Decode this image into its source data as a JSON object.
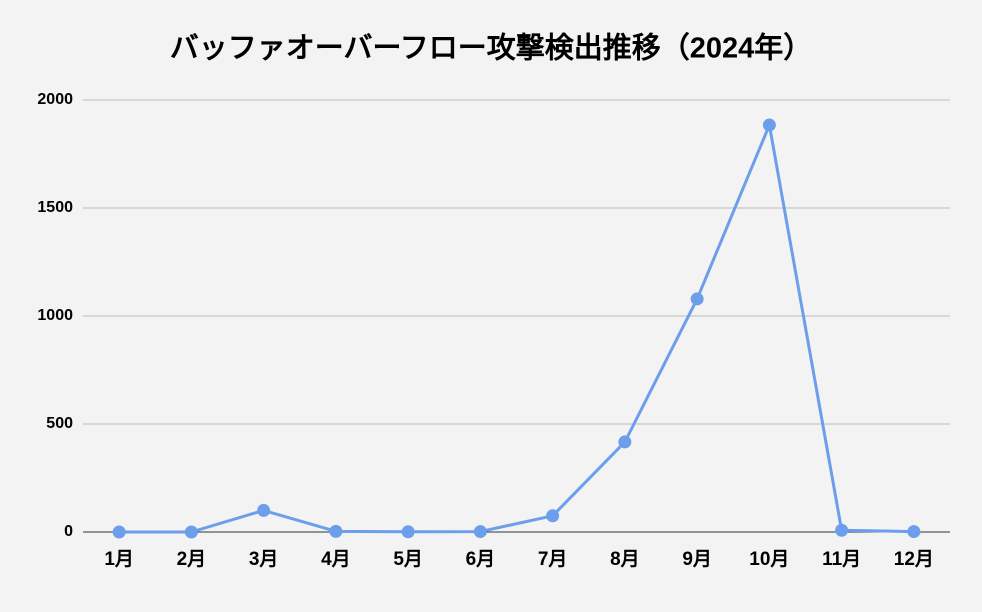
{
  "chart_data": {
    "type": "line",
    "title": "バッファオーバーフロー攻撃検出推移（2024年）",
    "categories": [
      "1月",
      "2月",
      "3月",
      "4月",
      "5月",
      "6月",
      "7月",
      "8月",
      "9月",
      "10月",
      "11月",
      "12月"
    ],
    "values": [
      0,
      0,
      100,
      3,
      1,
      2,
      75,
      417,
      1079,
      1884,
      8,
      2
    ],
    "color": "#6d9eeb",
    "ylim": [
      0,
      2000
    ],
    "yticks": [
      0,
      500,
      1000,
      1500,
      2000
    ],
    "grid": true
  }
}
